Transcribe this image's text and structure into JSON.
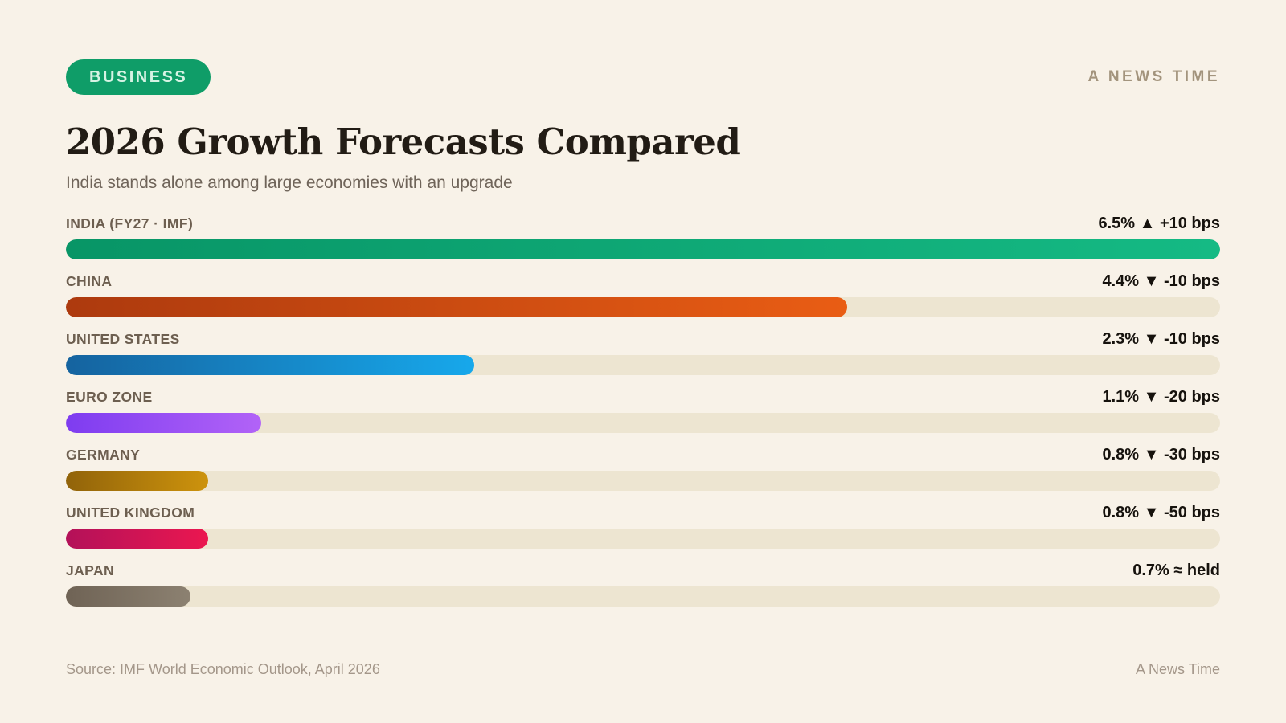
{
  "badge": {
    "label": "BUSINESS",
    "bg": "#0f9d68",
    "text_color": "#d6f3e4"
  },
  "masthead": {
    "label": "A NEWS TIME",
    "color": "#a3947d"
  },
  "header": {
    "title": "2026 Growth Forecasts Compared",
    "subtitle": "India stands alone among large economies with an upgrade"
  },
  "footer": {
    "source": "Source: IMF World Economic Outlook, April 2026",
    "brand": "A News Time"
  },
  "chart_data": {
    "type": "bar",
    "orientation": "horizontal",
    "title": "2026 Growth Forecasts Compared",
    "subtitle": "India stands alone among large economies with an upgrade",
    "xlim": [
      0,
      6.5
    ],
    "grid": false,
    "legend": false,
    "track_color": "#ede5d1",
    "categories": [
      "INDIA (FY27 · IMF)",
      "CHINA",
      "UNITED STATES",
      "EURO ZONE",
      "GERMANY",
      "UNITED KINGDOM",
      "JAPAN"
    ],
    "values": [
      6.5,
      4.4,
      2.3,
      1.1,
      0.8,
      0.8,
      0.7
    ],
    "value_labels": [
      "6.5% ▲ +10 bps",
      "4.4% ▼ -10 bps",
      "2.3% ▼ -10 bps",
      "1.1% ▼ -20 bps",
      "0.8% ▼ -30 bps",
      "0.8% ▼ -50 bps",
      "0.7% ≈ held"
    ],
    "change_bps": [
      10,
      -10,
      -10,
      -20,
      -30,
      -50,
      0
    ],
    "bar_colors": [
      [
        "#089566",
        "#15ba84"
      ],
      [
        "#ad3a0e",
        "#e95d14"
      ],
      [
        "#15639f",
        "#17a8eb"
      ],
      [
        "#7e3cf0",
        "#b263f7"
      ],
      [
        "#91630a",
        "#cd930d"
      ],
      [
        "#b31159",
        "#eb1750"
      ],
      [
        "#6f6355",
        "#8c8171"
      ]
    ]
  }
}
